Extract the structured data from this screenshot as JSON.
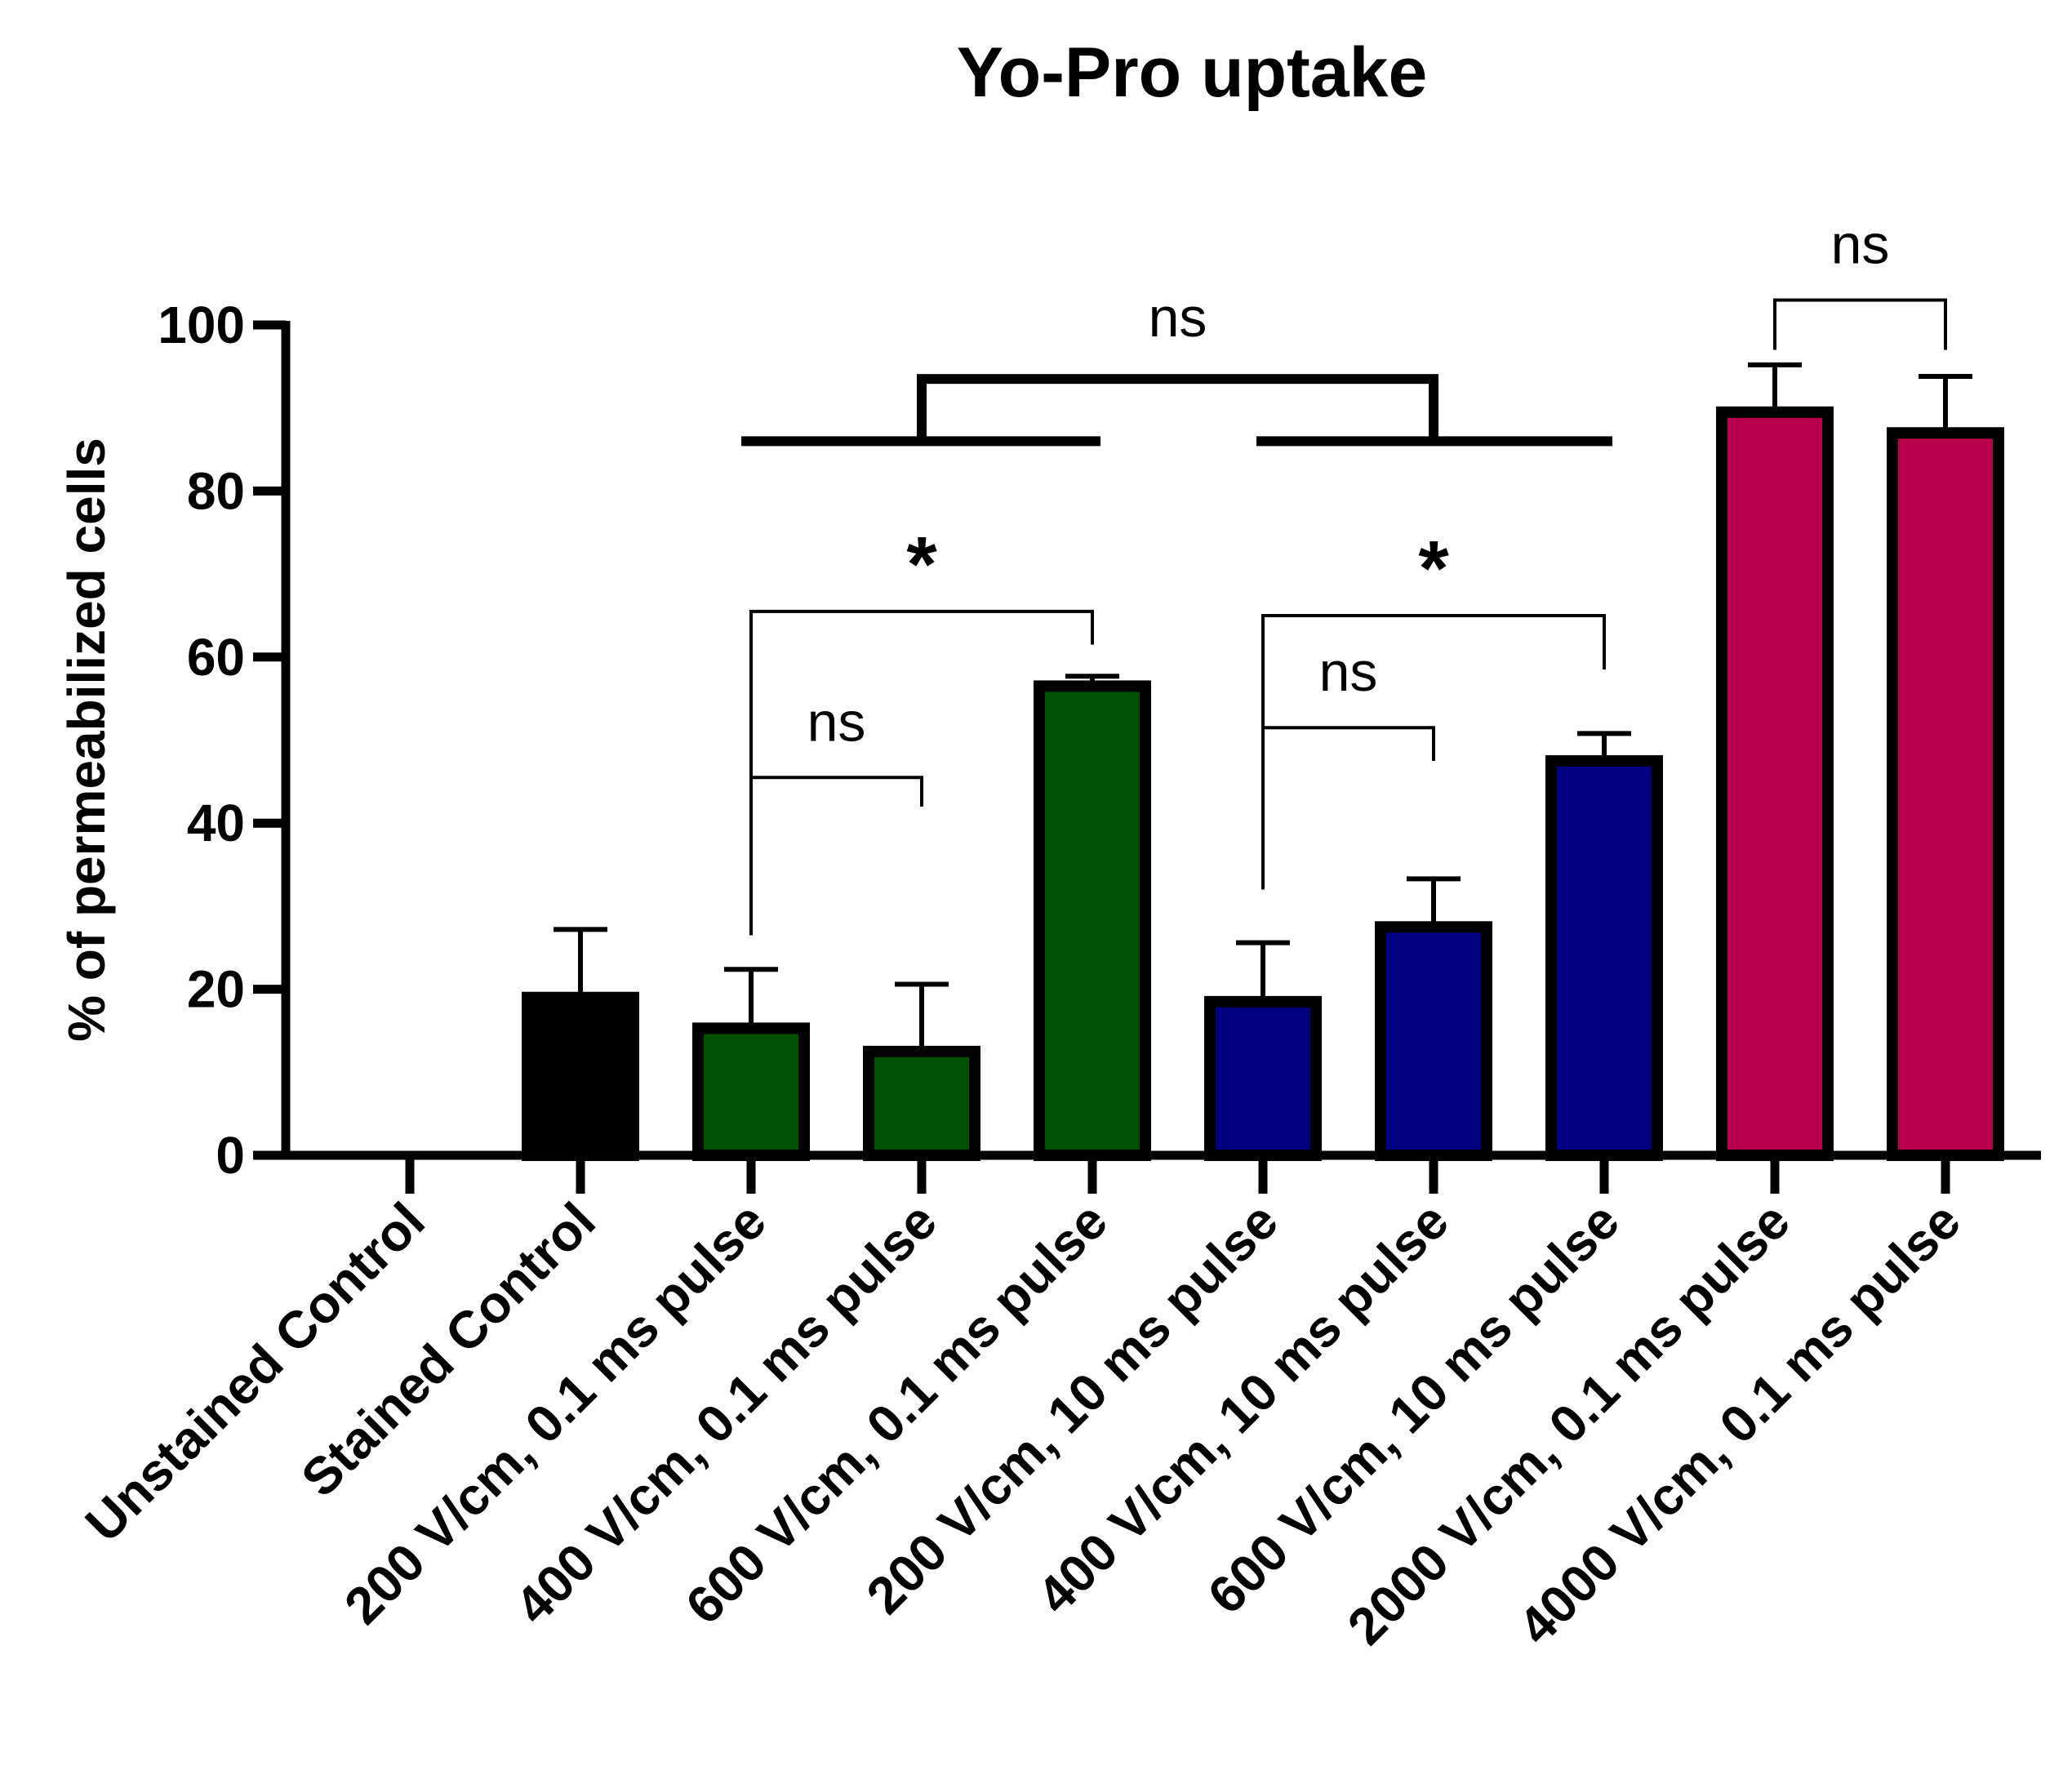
{
  "chart_data": {
    "type": "bar",
    "title": "Yo-Pro uptake",
    "xlabel": "",
    "ylabel": "% of permeabilized cells",
    "ylim": [
      0,
      100
    ],
    "yticks": [
      "0",
      "20",
      "40",
      "60",
      "80",
      "100"
    ],
    "categories": [
      "Unstained Control",
      "Stained Control",
      "200 V/cm, 0.1 ms pulse",
      "400 V/cm, 0.1 ms pulse",
      "600 V/cm, 0.1 ms pulse",
      "200 V/cm, 10 ms pulse",
      "400 V/cm, 10 ms pulse",
      "600 V/cm, 10 ms pulse",
      "2000 V/cm, 0.1 ms pulse",
      "4000 V/cm, 0.1 ms pulse"
    ],
    "values": [
      0,
      19,
      15.3,
      12.5,
      56.5,
      18.5,
      27.5,
      47.5,
      89.5,
      87
    ],
    "errors": [
      0,
      8.2,
      7.1,
      8.1,
      1.2,
      7.1,
      5.8,
      3.3,
      5.7,
      6.8
    ],
    "colors": [
      "#000000",
      "#000000",
      "#005000",
      "#005000",
      "#005000",
      "#000080",
      "#000080",
      "#000080",
      "#b8004d",
      "#b8004d"
    ],
    "significance": [
      {
        "label": "ns",
        "style": "thin",
        "left": 2,
        "right": 3,
        "y": 45.5,
        "left_drop": 26.5,
        "right_drop": 42
      },
      {
        "label": "*",
        "style": "thin",
        "left": 2,
        "right": 4,
        "y": 65.5,
        "left_drop": 45.5,
        "right_drop": 61.5
      },
      {
        "label": "ns",
        "style": "thin",
        "left": 5,
        "right": 6,
        "y": 51.5,
        "left_drop": 32,
        "right_drop": 47.5
      },
      {
        "label": "*",
        "style": "thin",
        "left": 5,
        "right": 7,
        "y": 65,
        "left_drop": 51.5,
        "right_drop": 58.5
      },
      {
        "label": "ns",
        "style": "thin",
        "left": 8,
        "right": 9,
        "y": 103,
        "left_drop": 97,
        "right_drop": 97
      },
      {
        "label": "ns",
        "style": "group",
        "groupA": [
          2,
          4
        ],
        "groupB": [
          5,
          7
        ],
        "group_y": 86,
        "y": 93.5
      }
    ]
  }
}
